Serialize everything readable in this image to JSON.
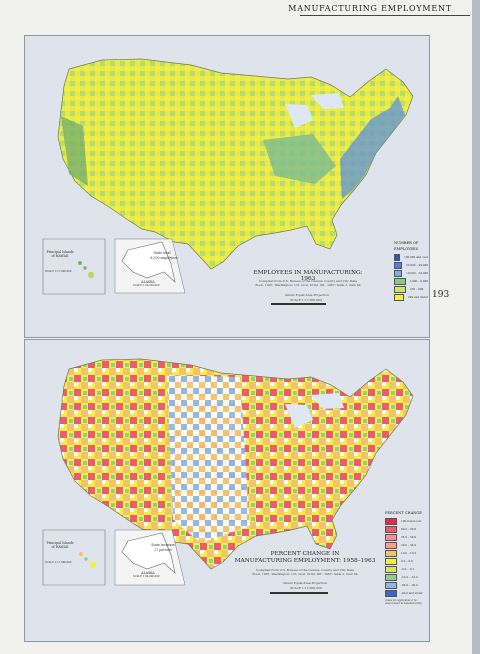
{
  "header": {
    "title": "MANUFACTURING EMPLOYMENT"
  },
  "page_number": "193",
  "map1": {
    "title_line1": "EMPLOYEES IN MANUFACTURING: 1963",
    "credit_line1": "Compiled from U.S. Bureau of the Census, County and City Data",
    "credit_line2": "Book, 1967, Washington, U.S. Govt. Print. Off., 1967; table 2, item 64",
    "projection": "Albers Equal Area Projection",
    "scale": "SCALE 1:17,000,000",
    "hawaii_title": "Principal Islands of HAWAII",
    "hawaii_scale": "SCALE 1:17,000,000",
    "alaska_title": "ALASKA",
    "alaska_scale": "SCALE 1:34,000,000",
    "alaska_note_line1": "State total",
    "alaska_note_line2": "6,300 employees",
    "legend": {
      "title_line1": "NUMBER OF",
      "title_line2": "EMPLOYEES",
      "items": [
        {
          "label": "100,000 and over",
          "color": "#2d57b6"
        },
        {
          "label": "25,000 – 99,999",
          "color": "#4d81d1"
        },
        {
          "label": "10,000 – 24,999",
          "color": "#7faedd"
        },
        {
          "label": "1,000 – 9,999",
          "color": "#89c88c"
        },
        {
          "label": "250 – 999",
          "color": "#cfe56a"
        },
        {
          "label": "249 and under",
          "color": "#f4ef3e"
        }
      ]
    }
  },
  "map2": {
    "title_line1": "PERCENT CHANGE IN",
    "title_line2": "MANUFACTURING EMPLOYMENT: 1958–1963",
    "credit_line1": "Compiled from U.S. Bureau of the Census, County and City Data",
    "credit_line2": "Book, 1967, Washington, U.S. Govt. Print. Off., 1967; table 2, item 64",
    "projection": "Albers Equal Area Projection",
    "scale": "SCALE 1:17,000,000",
    "hawaii_title": "Principal Islands of HAWAII",
    "hawaii_scale": "SCALE 1:17,000,000",
    "alaska_title": "ALASKA",
    "alaska_scale": "SCALE 1:34,000,000",
    "alaska_note_line1": "State increase",
    "alaska_note_line2": "27 percent",
    "legend": {
      "title_line1": "PERCENT CHANGE",
      "items": [
        {
          "label": "100.0 and over",
          "color": "#e02d4e"
        },
        {
          "label": "60.0 – 99.9",
          "color": "#eb5c73"
        },
        {
          "label": "35.0 – 59.9",
          "color": "#f58e99"
        },
        {
          "label": "20.0 – 34.9",
          "color": "#f5a08a"
        },
        {
          "label": "10.0 – 19.9",
          "color": "#f3c26f"
        },
        {
          "label": "0.0 – 9.9",
          "color": "#f4ef43"
        },
        {
          "label": "-9.9 – -0.1",
          "color": "#d1e66f"
        },
        {
          "label": "-19.9 – -10.0",
          "color": "#8fcf8e"
        },
        {
          "label": "-39.9 – -20.0",
          "color": "#8cb7e8"
        },
        {
          "label": "-40.0 and under",
          "color": "#3e66c5"
        }
      ],
      "note": "Areas not applicable or no employment in manufacturing"
    }
  }
}
